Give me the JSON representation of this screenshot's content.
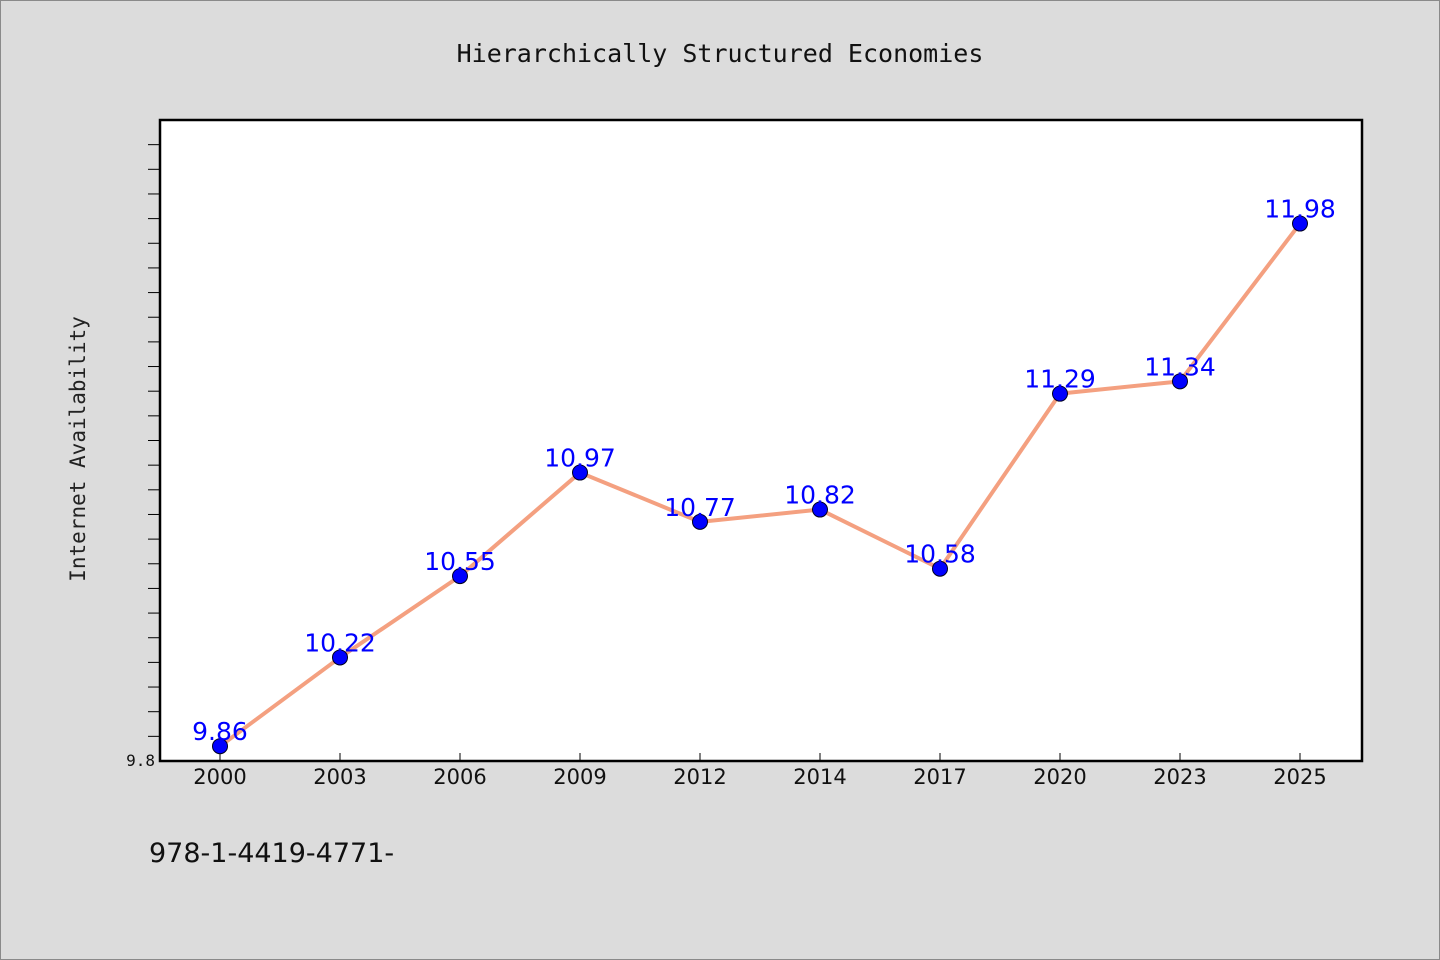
{
  "chart_data": {
    "type": "line",
    "title": "Hierarchically Structured Economies",
    "xlabel": "",
    "ylabel": "Internet Availability",
    "categories": [
      "2000",
      "2003",
      "2006",
      "2009",
      "2012",
      "2014",
      "2017",
      "2020",
      "2023",
      "2025"
    ],
    "series": [
      {
        "values": [
          9.86,
          10.22,
          10.55,
          10.97,
          10.77,
          10.82,
          10.58,
          11.29,
          11.34,
          11.98
        ]
      }
    ],
    "data_labels": [
      "9.86",
      "10.22",
      "10.55",
      "10.97",
      "10.77",
      "10.82",
      "10.58",
      "11.29",
      "11.34",
      "11.98"
    ],
    "ylim": [
      9.8,
      12.4
    ],
    "y_tick_labels": [
      "9.8"
    ],
    "grid": false,
    "legend": "none",
    "colors": {
      "line": "#f4a080",
      "marker": "#0000ff",
      "data_label": "#0000ff",
      "plot_background": "#ffffff",
      "figure_background": "#dcdcdc"
    }
  },
  "footer": {
    "text": "978-1-4419-4771-"
  }
}
